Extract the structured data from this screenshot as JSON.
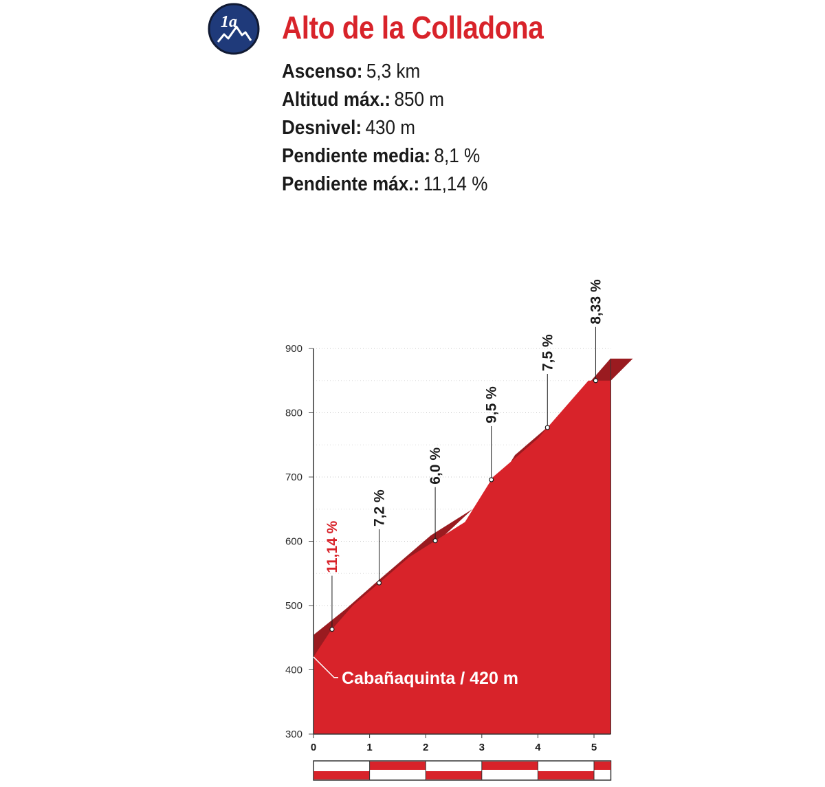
{
  "header": {
    "badge_text": "1a",
    "badge_icon": "mountain-icon",
    "badge_color": "#1f3a7a",
    "title": "Alto de la Colladona",
    "title_color": "#d8232a"
  },
  "stats": [
    {
      "label": "Ascenso:",
      "value": "5,3 km"
    },
    {
      "label": "Altitud máx.:",
      "value": "850 m"
    },
    {
      "label": "Desnivel:",
      "value": "430 m"
    },
    {
      "label": "Pendiente media:",
      "value": "8,1 %"
    },
    {
      "label": "Pendiente máx.:",
      "value": "11,14 %"
    }
  ],
  "chart_data": {
    "type": "area",
    "title": "",
    "xlabel": "",
    "ylabel": "",
    "xlim": [
      0,
      5.3
    ],
    "ylim": [
      300,
      900
    ],
    "x_ticks": [
      0,
      1,
      2,
      3,
      4,
      5
    ],
    "y_ticks": [
      300,
      400,
      500,
      600,
      700,
      800,
      900
    ],
    "grid": "horizontal dotted",
    "fill_color": "#d8232a",
    "edge_color": "#9a1b20",
    "series": [
      {
        "x": [
          0,
          0.3,
          0.7,
          1.7,
          2.7,
          3.2,
          4.0,
          4.9,
          5.3
        ],
        "y": [
          420,
          460,
          500,
          575,
          630,
          700,
          760,
          850,
          850
        ]
      }
    ],
    "start_annotation": {
      "x": 0,
      "y": 420,
      "text": "Cabañaquinta / 420 m"
    },
    "gradients": [
      {
        "km": 0.33,
        "value": "11,14 %",
        "color": "#d8232a"
      },
      {
        "km": 1.17,
        "value": "7,2 %",
        "color": "#1a1a1a"
      },
      {
        "km": 2.17,
        "value": "6,0 %",
        "color": "#1a1a1a"
      },
      {
        "km": 3.17,
        "value": "9,5 %",
        "color": "#1a1a1a"
      },
      {
        "km": 4.17,
        "value": "7,5 %",
        "color": "#1a1a1a"
      },
      {
        "km": 5.03,
        "value": "8,33 %",
        "color": "#1a1a1a"
      }
    ]
  }
}
